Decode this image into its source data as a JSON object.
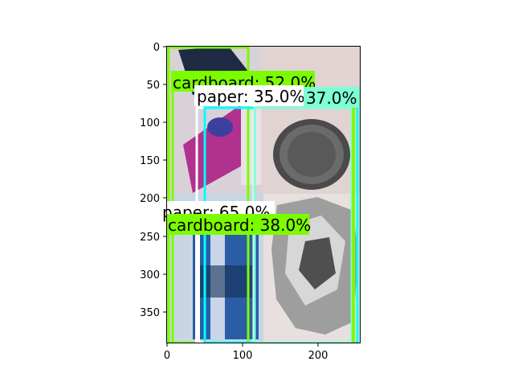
{
  "figure": {
    "background": "#ffffff",
    "axes": {
      "x_ticks": [
        "0",
        "100",
        "200"
      ],
      "y_ticks": [
        "0",
        "50",
        "100",
        "150",
        "200",
        "250",
        "300",
        "350"
      ]
    },
    "image_tiles": [
      {
        "name": "tile-cardboard-box",
        "tone": "#d9cfd6",
        "accent": "#b02f8c"
      },
      {
        "name": "tile-metal-can",
        "tone": "#e3d6d6",
        "accent": "#5a5a5a"
      },
      {
        "name": "tile-blue-package",
        "tone": "#c9d6e3",
        "accent": "#2a5fa8"
      },
      {
        "name": "tile-foil",
        "tone": "#e6dede",
        "accent": "#a9a9a9"
      }
    ]
  },
  "detections": [
    {
      "label": "cardboard: 52.0%",
      "color": "#7cfc00"
    },
    {
      "label": "paper: 35.0%",
      "color": "#ffffff"
    },
    {
      "label": "37.0%",
      "color": "#7fffd4"
    },
    {
      "label": "paper: 65.0%",
      "color": "#ffffff"
    },
    {
      "label": "cardboard: 38.0%",
      "color": "#7cfc00"
    }
  ],
  "colors": {
    "lime": "#7cfc00",
    "cyan": "#00ffff",
    "white": "#ffffff",
    "aquamarine": "#7fffd4"
  }
}
